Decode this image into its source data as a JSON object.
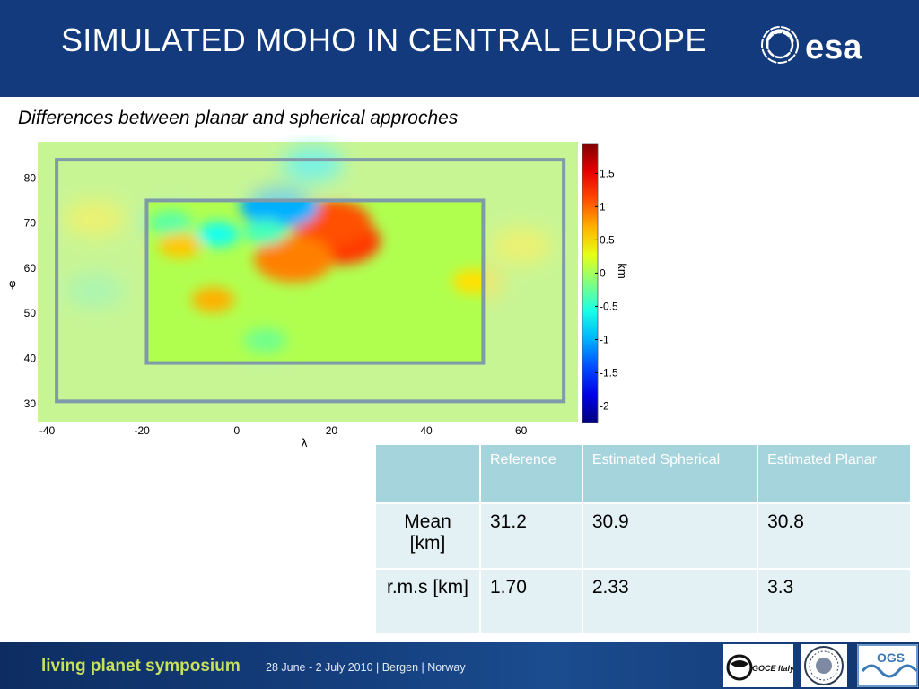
{
  "slide": {
    "title": "SIMULATED MOHO IN CENTRAL EUROPE",
    "subtitle": "Differences between planar and spherical approches"
  },
  "logos": {
    "esa": "esa",
    "goce_italy": "GOCE Italy",
    "ogs": "OGS"
  },
  "chart_data": {
    "type": "heatmap",
    "title": "",
    "xlabel": "λ",
    "ylabel": "φ",
    "x_ticks": [
      "-40",
      "-20",
      "0",
      "20",
      "40",
      "60"
    ],
    "y_ticks": [
      "80",
      "70",
      "60",
      "50",
      "40",
      "30"
    ],
    "xlim": [
      -42,
      72
    ],
    "ylim": [
      26,
      88
    ],
    "colorbar": {
      "label": "km",
      "ticks": [
        "1.5",
        "1",
        "0.5",
        "0",
        "-0.5",
        "-1",
        "-1.5",
        "-2"
      ],
      "range": [
        -2.25,
        1.95
      ],
      "colormap": "jet"
    },
    "outer_box": {
      "lon": [
        -38,
        69
      ],
      "lat": [
        30.5,
        84
      ]
    },
    "inner_box": {
      "lon": [
        -19,
        52
      ],
      "lat": [
        39,
        75
      ]
    },
    "features": [
      {
        "lon": 22,
        "lat": 66,
        "value": 1.2
      },
      {
        "lon": 20,
        "lat": 70,
        "value": 1.1
      },
      {
        "lon": 12,
        "lat": 62,
        "value": 0.9
      },
      {
        "lon": 9,
        "lat": 74,
        "value": -1.0
      },
      {
        "lon": -4,
        "lat": 67.5,
        "value": -0.6
      },
      {
        "lon": 6,
        "lat": 68,
        "value": -0.4
      },
      {
        "lon": -14,
        "lat": 70,
        "value": -0.3
      },
      {
        "lon": -12,
        "lat": 65,
        "value": 0.6
      },
      {
        "lon": -5,
        "lat": 53,
        "value": 0.7
      },
      {
        "lon": 50,
        "lat": 57,
        "value": 0.5
      },
      {
        "lon": 6,
        "lat": 44,
        "value": -0.2
      },
      {
        "lon": 16,
        "lat": 83,
        "value": -0.7
      },
      {
        "lon": -30,
        "lat": 71,
        "value": 0.4
      },
      {
        "lon": 60,
        "lat": 65,
        "value": 0.4
      },
      {
        "lon": -30,
        "lat": 55,
        "value": -0.2
      }
    ]
  },
  "table": {
    "headers": [
      "",
      "Reference",
      "Estimated Spherical",
      "Estimated Planar"
    ],
    "rows": [
      {
        "label": "Mean [km]",
        "values": [
          "31.2",
          "30.9",
          "30.8"
        ]
      },
      {
        "label": "r.m.s [km]",
        "values": [
          "1.70",
          "2.33",
          "3.3"
        ]
      }
    ]
  },
  "footer": {
    "title": "living planet symposium",
    "date": "28 June - 2 July 2010 | Bergen | Norway"
  },
  "colors": {
    "header_bg": "#123a7c",
    "table_header_bg": "#a6d4dc",
    "table_cell_bg": "#e3f1f4",
    "footer_title": "#c9e15a",
    "box_stroke": "#7f9aa8"
  }
}
